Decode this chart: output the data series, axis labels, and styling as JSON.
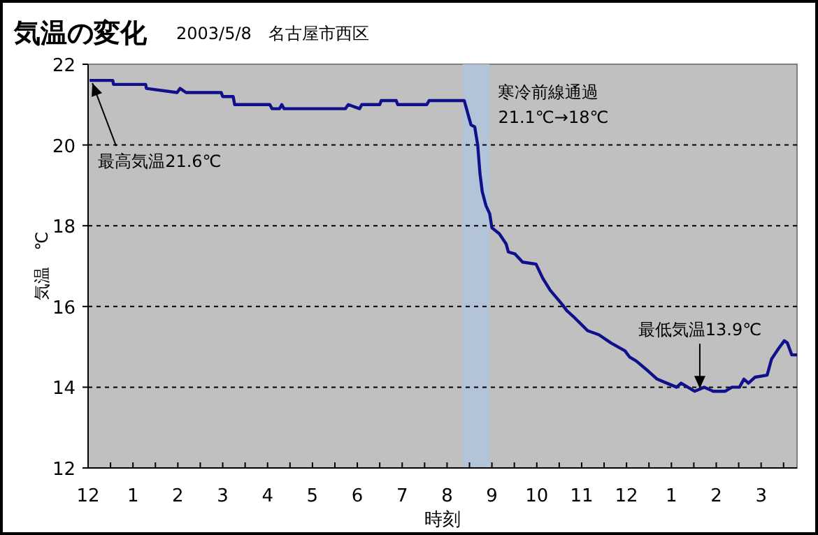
{
  "chart_data": {
    "type": "line",
    "title": "気温の変化",
    "subtitle": "2003/5/8　名古屋市西区",
    "xlabel": "時刻",
    "ylabel": "気温　℃",
    "xlim": [
      "2003-05-08T12:00",
      "2003-05-09T03:48"
    ],
    "ylim": [
      12,
      22
    ],
    "xticks": [
      {
        "value": "2003-05-08T12:00",
        "label": "12"
      },
      {
        "value": "2003-05-08T12:30",
        "label": null
      },
      {
        "value": "2003-05-08T13:00",
        "label": "1"
      },
      {
        "value": "2003-05-08T13:30",
        "label": null
      },
      {
        "value": "2003-05-08T14:00",
        "label": "2"
      },
      {
        "value": "2003-05-08T14:30",
        "label": null
      },
      {
        "value": "2003-05-08T15:00",
        "label": "3"
      },
      {
        "value": "2003-05-08T15:30",
        "label": null
      },
      {
        "value": "2003-05-08T16:00",
        "label": "4"
      },
      {
        "value": "2003-05-08T16:30",
        "label": null
      },
      {
        "value": "2003-05-08T17:00",
        "label": "5"
      },
      {
        "value": "2003-05-08T17:30",
        "label": null
      },
      {
        "value": "2003-05-08T18:00",
        "label": "6"
      },
      {
        "value": "2003-05-08T18:30",
        "label": null
      },
      {
        "value": "2003-05-08T19:00",
        "label": "7"
      },
      {
        "value": "2003-05-08T19:30",
        "label": null
      },
      {
        "value": "2003-05-08T20:00",
        "label": "8"
      },
      {
        "value": "2003-05-08T20:30",
        "label": null
      },
      {
        "value": "2003-05-08T21:00",
        "label": "9"
      },
      {
        "value": "2003-05-08T21:30",
        "label": null
      },
      {
        "value": "2003-05-08T22:00",
        "label": "10"
      },
      {
        "value": "2003-05-08T22:30",
        "label": null
      },
      {
        "value": "2003-05-08T23:00",
        "label": "11"
      },
      {
        "value": "2003-05-08T23:30",
        "label": null
      },
      {
        "value": "2003-05-09T00:00",
        "label": "12"
      },
      {
        "value": "2003-05-09T00:30",
        "label": null
      },
      {
        "value": "2003-05-09T01:00",
        "label": "1"
      },
      {
        "value": "2003-05-09T01:30",
        "label": null
      },
      {
        "value": "2003-05-09T02:00",
        "label": "2"
      },
      {
        "value": "2003-05-09T02:30",
        "label": null
      },
      {
        "value": "2003-05-09T03:00",
        "label": "3"
      },
      {
        "value": "2003-05-09T03:30",
        "label": null
      }
    ],
    "yticks": [
      12,
      14,
      16,
      18,
      20,
      22
    ],
    "grid": "y",
    "marker": "none",
    "line_style": "solid",
    "series": [
      {
        "color": "#10108c",
        "x": [
          "2003-05-08T12:02",
          "2003-05-08T12:33",
          "2003-05-08T12:34",
          "2003-05-08T13:17",
          "2003-05-08T13:18",
          "2003-05-08T13:59",
          "2003-05-08T14:03",
          "2003-05-08T14:11",
          "2003-05-08T14:58",
          "2003-05-08T15:00",
          "2003-05-08T15:14",
          "2003-05-08T15:16",
          "2003-05-08T16:03",
          "2003-05-08T16:06",
          "2003-05-08T16:16",
          "2003-05-08T16:19",
          "2003-05-08T16:22",
          "2003-05-08T17:44",
          "2003-05-08T17:48",
          "2003-05-08T18:03",
          "2003-05-08T18:06",
          "2003-05-08T18:30",
          "2003-05-08T18:32",
          "2003-05-08T18:52",
          "2003-05-08T18:54",
          "2003-05-08T19:33",
          "2003-05-08T19:36",
          "2003-05-08T20:23",
          "2003-05-08T20:32",
          "2003-05-08T20:37",
          "2003-05-08T20:41",
          "2003-05-08T20:44",
          "2003-05-08T20:47",
          "2003-05-08T20:52",
          "2003-05-08T20:57",
          "2003-05-08T21:00",
          "2003-05-08T21:10",
          "2003-05-08T21:19",
          "2003-05-08T21:22",
          "2003-05-08T21:31",
          "2003-05-08T21:41",
          "2003-05-08T21:59",
          "2003-05-08T22:08",
          "2003-05-08T22:18",
          "2003-05-08T22:34",
          "2003-05-08T22:40",
          "2003-05-08T22:49",
          "2003-05-08T23:08",
          "2003-05-08T23:23",
          "2003-05-08T23:39",
          "2003-05-08T23:58",
          "2003-05-09T00:04",
          "2003-05-09T00:13",
          "2003-05-09T00:29",
          "2003-05-09T00:41",
          "2003-05-09T00:54",
          "2003-05-09T01:07",
          "2003-05-09T01:13",
          "2003-05-09T01:22",
          "2003-05-09T01:31",
          "2003-05-09T01:44",
          "2003-05-09T01:56",
          "2003-05-09T02:12",
          "2003-05-09T02:21",
          "2003-05-09T02:31",
          "2003-05-09T02:37",
          "2003-05-09T02:43",
          "2003-05-09T02:52",
          "2003-05-09T03:08",
          "2003-05-09T03:14",
          "2003-05-09T03:23",
          "2003-05-09T03:31",
          "2003-05-09T03:35",
          "2003-05-09T03:41",
          "2003-05-09T03:48"
        ],
        "values": [
          21.6,
          21.6,
          21.5,
          21.5,
          21.4,
          21.3,
          21.4,
          21.3,
          21.3,
          21.2,
          21.2,
          21.0,
          21.0,
          20.9,
          20.9,
          21.0,
          20.9,
          20.9,
          21.0,
          20.9,
          21.0,
          21.0,
          21.1,
          21.1,
          21.0,
          21.0,
          21.1,
          21.1,
          20.5,
          20.45,
          20.0,
          19.3,
          18.85,
          18.5,
          18.3,
          17.95,
          17.8,
          17.55,
          17.35,
          17.3,
          17.1,
          17.05,
          16.7,
          16.4,
          16.05,
          15.9,
          15.75,
          15.4,
          15.3,
          15.1,
          14.9,
          14.75,
          14.65,
          14.4,
          14.2,
          14.1,
          14.0,
          14.1,
          14.0,
          13.9,
          14.0,
          13.9,
          13.9,
          14.0,
          14.0,
          14.2,
          14.1,
          14.25,
          14.3,
          14.7,
          14.95,
          15.15,
          15.1,
          14.8,
          14.8
        ]
      }
    ],
    "bands": [
      {
        "axis": "x",
        "from": "2003-05-08T20:21",
        "to": "2003-05-08T20:57",
        "label": "寒冷前線通過",
        "color": "#b4c4d8"
      }
    ],
    "annotations": [
      {
        "text": "最高気温21.6℃",
        "x": "2003-05-08T12:02",
        "y": 21.6
      },
      {
        "text": "最低気温13.9℃",
        "x": "2003-05-09T01:38",
        "y": 13.9
      },
      "21.1℃→18℃"
    ]
  }
}
